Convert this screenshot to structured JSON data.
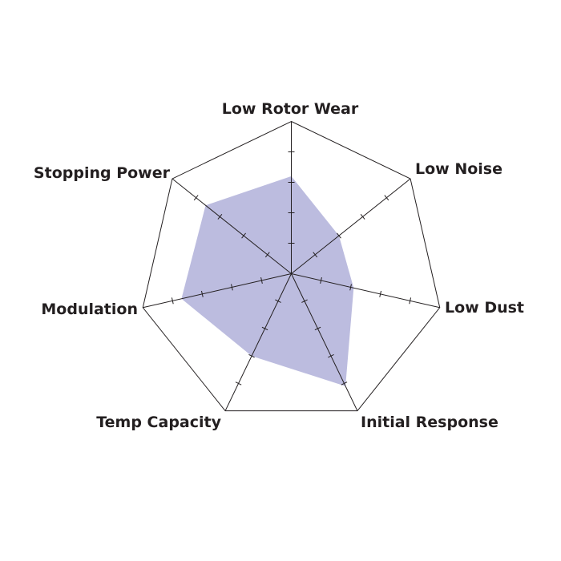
{
  "chart_data": {
    "type": "radar",
    "title": "",
    "axes": [
      "Low Rotor Wear",
      "Low Noise",
      "Low Dust",
      "Initial Response",
      "Temp Capacity",
      "Modulation",
      "Stopping Power"
    ],
    "values": [
      3.2,
      2.0,
      2.1,
      4.1,
      3.0,
      3.7,
      3.6
    ],
    "range": [
      0,
      5
    ],
    "tick_step": 1,
    "grid": "outer heptagon only",
    "legend": "none",
    "colors": {
      "fill": "#bcbcdf",
      "axis": "#231f20",
      "text": "#231f20"
    }
  }
}
